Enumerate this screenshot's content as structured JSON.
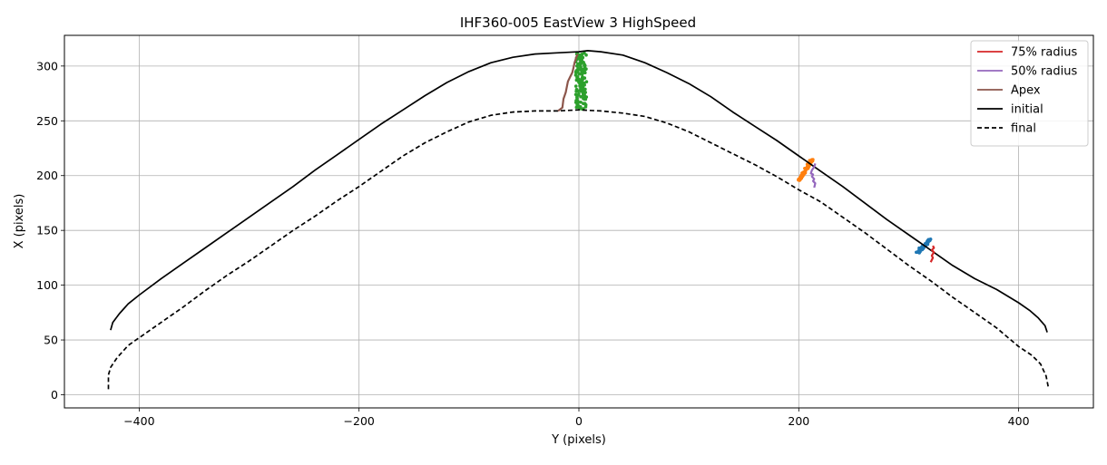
{
  "chart_data": {
    "type": "line",
    "title": "IHF360-005 EastView 3 HighSpeed",
    "xlabel": "Y (pixels)",
    "ylabel": "X (pixels)",
    "xlim": [
      -468,
      468
    ],
    "ylim": [
      -12,
      328
    ],
    "xticks": [
      -400,
      -200,
      0,
      200,
      400
    ],
    "xtick_labels": [
      "−400",
      "−200",
      "0",
      "200",
      "400"
    ],
    "yticks": [
      0,
      50,
      100,
      150,
      200,
      250,
      300
    ],
    "ytick_labels": [
      "0",
      "50",
      "100",
      "150",
      "200",
      "250",
      "300"
    ],
    "grid": true,
    "legend_position": "top-right",
    "legend": [
      {
        "label": "75% radius",
        "color": "#d62728",
        "style": "solid"
      },
      {
        "label": "50% radius",
        "color": "#9467bd",
        "style": "solid"
      },
      {
        "label": "Apex",
        "color": "#8c564b",
        "style": "solid"
      },
      {
        "label": "initial",
        "color": "#000000",
        "style": "solid"
      },
      {
        "label": "final",
        "color": "#000000",
        "style": "dashed"
      }
    ],
    "series": [
      {
        "name": "initial",
        "color": "#000000",
        "style": "solid",
        "x": [
          -426,
          -424,
          -418,
          -410,
          -400,
          -380,
          -360,
          -340,
          -320,
          -300,
          -280,
          -260,
          -240,
          -220,
          -200,
          -180,
          -160,
          -140,
          -120,
          -100,
          -80,
          -60,
          -40,
          -20,
          0,
          8,
          20,
          40,
          60,
          80,
          100,
          120,
          140,
          160,
          180,
          200,
          220,
          240,
          260,
          280,
          300,
          320,
          340,
          360,
          380,
          400,
          410,
          418,
          424,
          426
        ],
        "y": [
          59,
          66,
          74,
          83,
          91,
          106,
          120,
          134,
          148,
          162,
          176,
          190,
          205,
          219,
          233,
          247,
          260,
          273,
          285,
          295,
          303,
          308,
          311,
          312,
          313,
          314,
          313,
          310,
          303,
          294,
          284,
          272,
          258,
          245,
          232,
          218,
          204,
          190,
          175,
          160,
          146,
          132,
          118,
          106,
          96,
          84,
          77,
          70,
          63,
          57
        ]
      },
      {
        "name": "final",
        "color": "#000000",
        "style": "dashed",
        "x": [
          -428,
          -428,
          -426,
          -420,
          -410,
          -400,
          -380,
          -360,
          -340,
          -320,
          -300,
          -280,
          -260,
          -240,
          -220,
          -200,
          -180,
          -160,
          -140,
          -120,
          -100,
          -80,
          -60,
          -40,
          -20,
          0,
          20,
          40,
          60,
          80,
          100,
          120,
          140,
          160,
          180,
          200,
          220,
          240,
          260,
          280,
          300,
          320,
          340,
          360,
          380,
          400,
          412,
          420,
          425,
          426,
          427
        ],
        "y": [
          5,
          18,
          25,
          34,
          45,
          52,
          66,
          80,
          95,
          109,
          122,
          136,
          150,
          163,
          177,
          190,
          204,
          218,
          230,
          240,
          249,
          255,
          258,
          259,
          259,
          260,
          259,
          257,
          254,
          248,
          240,
          230,
          220,
          210,
          199,
          187,
          176,
          162,
          148,
          133,
          118,
          104,
          89,
          75,
          61,
          44,
          36,
          28,
          17,
          12,
          7
        ]
      },
      {
        "name": "Apex",
        "color": "#8c564b",
        "style": "solid",
        "x": [
          -19,
          -15,
          -14,
          -12,
          -11,
          -10,
          -8,
          -6,
          -5,
          -4,
          -3,
          -2,
          -1
        ],
        "y": [
          259,
          262,
          270,
          276,
          281,
          286,
          290,
          294,
          298,
          303,
          306,
          309,
          311
        ]
      },
      {
        "name": "50% radius",
        "color": "#9467bd",
        "style": "solid",
        "x": [
          214,
          215,
          213,
          214,
          212,
          213,
          211,
          212,
          214,
          215
        ],
        "y": [
          189,
          193,
          195,
          197,
          199,
          201,
          202,
          205,
          208,
          211
        ]
      },
      {
        "name": "75% radius",
        "color": "#d62728",
        "style": "solid",
        "x": [
          320,
          322,
          321,
          323,
          321,
          323,
          322
        ],
        "y": [
          121,
          125,
          127,
          130,
          132,
          134,
          136
        ]
      }
    ],
    "scatter_clusters": [
      {
        "color": "#2ca02c",
        "x_range": [
          -3,
          7
        ],
        "y_range": [
          260,
          312
        ],
        "count": 150
      },
      {
        "color": "#ff7f0e",
        "x_range": [
          200,
          212
        ],
        "y_range": [
          196,
          214
        ],
        "count": 60
      },
      {
        "color": "#1f77b4",
        "x_range": [
          308,
          320
        ],
        "y_range": [
          130,
          142
        ],
        "count": 50
      }
    ]
  }
}
